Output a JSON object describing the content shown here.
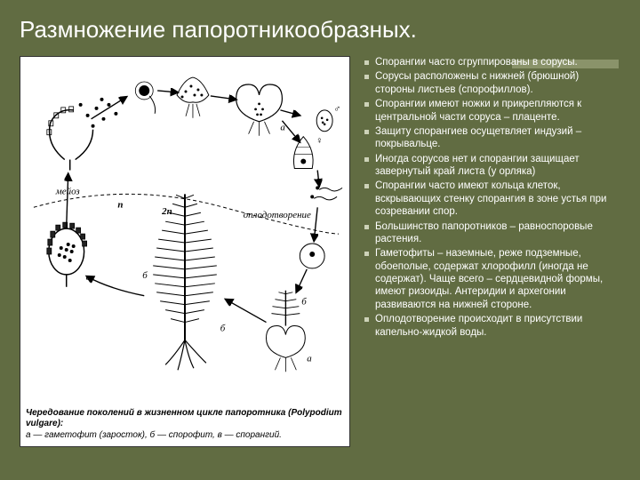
{
  "slide": {
    "title": "Размножение папоротникообразных.",
    "background_color": "#616c42",
    "accent_bar_color": "#8a936a",
    "bullet_marker_color": "#cdd2b8",
    "text_color": "#ffffff",
    "bullets": [
      "Спорангии часто сгруппированы в сорусы.",
      "Сорусы расположены с нижней (брюшной) стороны листьев (спорофиллов).",
      "Спорангии имеют ножки и прикрепляются к центральной части соруса – плаценте.",
      "Защиту спорангиев осущетвляет индузий – покрывальце.",
      "Иногда сорусов нет и спорангии защищает завернутый край листа (у орляка)",
      "Спорангии часто имеют кольца клеток, вскрывающих стенку спорангия в зоне устья при созревании спор.",
      "Большинство папоротников – равноспоровые растения.",
      "Гаметофиты – наземные, реже подземные, обоеполые, содержат хлорофилл (иногда не содержат). Чаще всего – сердцевидной формы, имеют ризоиды. Антеридии и архегонии развиваются на нижней стороне.",
      "Оплодотворение происходит в присутствии капельно-жидкой воды."
    ]
  },
  "figure": {
    "background": "#ffffff",
    "stroke": "#000000",
    "labels": {
      "meiosis": "мейоз",
      "fertilization": "оплодотворение",
      "n": "n",
      "2n": "2n",
      "a": "а",
      "b": "б",
      "v": "в",
      "male": "♂",
      "female": "♀"
    },
    "caption": {
      "line1": "Чередование поколений в жизненном цикле папоротника (Polypodium vulgare):",
      "line2": "а — гаметофит (заросток), б — спорофит, в — спорангий."
    }
  }
}
